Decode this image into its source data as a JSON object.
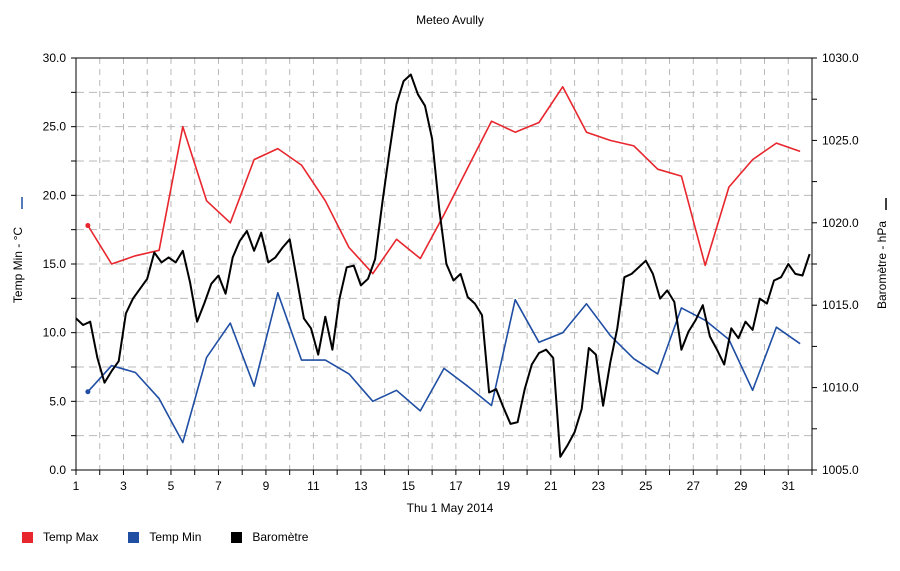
{
  "chart_data": {
    "type": "line",
    "title": "Meteo  Avully",
    "xlabel": "Thu 1 May 2014",
    "ylabel_left": "Temp Min - °C",
    "ylabel_right": "Baromètre - hPa",
    "xlim": [
      1,
      32
    ],
    "ylim_left": [
      0,
      30
    ],
    "ylim_right": [
      1005,
      1030
    ],
    "x_ticks": [
      "1",
      "3",
      "5",
      "7",
      "9",
      "11",
      "13",
      "15",
      "17",
      "19",
      "21",
      "23",
      "25",
      "27",
      "29",
      "31"
    ],
    "y_ticks_left": [
      "0.0",
      "5.0",
      "10.0",
      "15.0",
      "20.0",
      "25.0",
      "30.0"
    ],
    "y_ticks_right": [
      "1005.0",
      "1010.0",
      "1015.0",
      "1020.0",
      "1025.0",
      "1030.0"
    ],
    "grid": true,
    "legend_position": "bottom-left",
    "colors": {
      "temp_max": "#e8262d",
      "temp_min": "#1f4ea3",
      "barometre": "#000000"
    },
    "series": [
      {
        "name": "Temp Max",
        "axis": "left",
        "x": [
          1.5,
          2.5,
          3.5,
          4.5,
          5.5,
          6.5,
          7.5,
          8.5,
          9.5,
          10.5,
          11.5,
          12.5,
          13.5,
          14.5,
          15.5,
          16.5,
          17.5,
          18.5,
          19.5,
          20.5,
          21.5,
          22.5,
          23.5,
          24.5,
          25.5,
          26.5,
          27.5,
          28.5,
          29.5,
          30.5,
          31.5
        ],
        "values": [
          17.8,
          15.0,
          15.6,
          16.0,
          25.0,
          19.6,
          18.0,
          22.6,
          23.4,
          22.2,
          19.6,
          16.2,
          14.3,
          16.8,
          15.4,
          18.6,
          22.0,
          25.4,
          24.6,
          25.3,
          27.9,
          24.6,
          24.0,
          23.6,
          21.9,
          21.4,
          14.9,
          20.6,
          22.6,
          23.8,
          23.2
        ]
      },
      {
        "name": "Temp Min",
        "axis": "left",
        "x": [
          1.5,
          2.5,
          3.5,
          4.5,
          5.5,
          6.5,
          7.5,
          8.5,
          9.5,
          10.5,
          11.5,
          12.5,
          13.5,
          14.5,
          15.5,
          16.5,
          17.5,
          18.5,
          19.5,
          20.5,
          21.5,
          22.5,
          23.5,
          24.5,
          25.5,
          26.5,
          27.5,
          28.5,
          29.5,
          30.5,
          31.5
        ],
        "values": [
          5.7,
          7.6,
          7.1,
          5.2,
          2.0,
          8.2,
          10.7,
          6.1,
          12.9,
          8.0,
          8.0,
          7.0,
          5.0,
          5.8,
          4.3,
          7.4,
          6.1,
          4.7,
          12.4,
          9.3,
          10.0,
          12.1,
          9.8,
          8.1,
          7.0,
          11.8,
          10.9,
          9.5,
          5.8,
          10.4,
          9.2
        ]
      },
      {
        "name": "Baromètre",
        "axis": "right",
        "x": [
          1.0,
          1.3,
          1.6,
          1.9,
          2.2,
          2.5,
          2.8,
          3.1,
          3.4,
          3.7,
          4.0,
          4.3,
          4.6,
          4.9,
          5.2,
          5.5,
          5.8,
          6.1,
          6.4,
          6.7,
          7.0,
          7.3,
          7.6,
          7.9,
          8.2,
          8.5,
          8.8,
          9.1,
          9.4,
          9.7,
          10.0,
          10.3,
          10.6,
          10.9,
          11.2,
          11.5,
          11.8,
          12.1,
          12.4,
          12.7,
          13.0,
          13.3,
          13.6,
          13.9,
          14.2,
          14.5,
          14.8,
          15.1,
          15.4,
          15.7,
          16.0,
          16.3,
          16.6,
          16.9,
          17.2,
          17.5,
          17.8,
          18.1,
          18.4,
          18.7,
          19.0,
          19.3,
          19.6,
          19.9,
          20.2,
          20.5,
          20.8,
          21.1,
          21.4,
          21.7,
          22.0,
          22.3,
          22.6,
          22.9,
          23.2,
          23.5,
          23.8,
          24.1,
          24.4,
          24.7,
          25.0,
          25.3,
          25.6,
          25.9,
          26.2,
          26.5,
          26.8,
          27.1,
          27.4,
          27.7,
          28.0,
          28.3,
          28.6,
          28.9,
          29.2,
          29.5,
          29.8,
          30.1,
          30.4,
          30.7,
          31.0,
          31.3,
          31.6,
          31.9
        ],
        "values": [
          1014.2,
          1013.8,
          1014.0,
          1011.8,
          1010.3,
          1011.0,
          1011.6,
          1014.5,
          1015.4,
          1016.0,
          1016.6,
          1018.2,
          1017.6,
          1017.9,
          1017.6,
          1018.3,
          1016.4,
          1014.0,
          1015.1,
          1016.3,
          1016.8,
          1015.7,
          1017.9,
          1018.9,
          1019.5,
          1018.3,
          1019.4,
          1017.6,
          1017.9,
          1018.5,
          1019.0,
          1016.6,
          1014.2,
          1013.6,
          1012.0,
          1014.3,
          1012.3,
          1015.4,
          1017.3,
          1017.4,
          1016.2,
          1016.6,
          1017.8,
          1021.2,
          1024.3,
          1027.2,
          1028.6,
          1029.0,
          1027.8,
          1027.1,
          1025.1,
          1020.8,
          1017.5,
          1016.5,
          1016.9,
          1015.5,
          1015.1,
          1014.4,
          1009.7,
          1009.9,
          1008.8,
          1007.8,
          1007.9,
          1009.9,
          1011.4,
          1012.1,
          1012.3,
          1011.8,
          1005.8,
          1006.5,
          1007.3,
          1008.7,
          1012.4,
          1012.0,
          1008.9,
          1011.5,
          1013.6,
          1016.7,
          1016.9,
          1017.3,
          1017.7,
          1016.9,
          1015.4,
          1015.9,
          1015.2,
          1012.3,
          1013.4,
          1014.1,
          1015.0,
          1013.1,
          1012.3,
          1011.4,
          1013.6,
          1013.0,
          1014.0,
          1013.5,
          1015.4,
          1015.1,
          1016.5,
          1016.7,
          1017.5,
          1016.9,
          1016.8,
          1018.1
        ]
      }
    ]
  }
}
